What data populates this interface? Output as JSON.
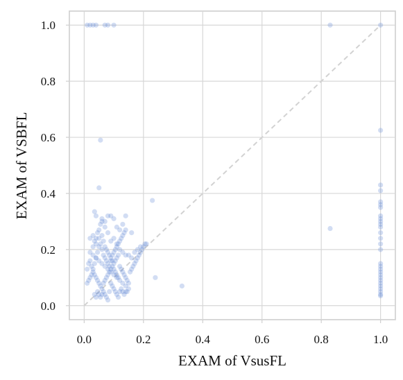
{
  "chart_data": {
    "type": "scatter",
    "title": "",
    "xlabel": "EXAM of VsusFL",
    "ylabel": "EXAM of VSBFL",
    "xlim": [
      -0.05,
      1.05
    ],
    "ylim": [
      -0.05,
      1.05
    ],
    "x_ticks": [
      0.0,
      0.2,
      0.4,
      0.6,
      0.8,
      1.0
    ],
    "y_ticks": [
      0.0,
      0.2,
      0.4,
      0.6,
      0.8,
      1.0
    ],
    "x_tick_labels": [
      "0.0",
      "0.2",
      "0.4",
      "0.6",
      "0.8",
      "1.0"
    ],
    "y_tick_labels": [
      "0.0",
      "0.2",
      "0.4",
      "0.6",
      "0.8",
      "1.0"
    ],
    "grid": true,
    "legend": "none",
    "reference_line": {
      "type": "identity",
      "from": [
        0,
        0
      ],
      "to": [
        1,
        1
      ],
      "style": "dashed"
    },
    "colors": {
      "point": "#6a8fd8",
      "grid": "#d7d7d7",
      "identity_line": "#d2d2d2",
      "axis_text": "#111111"
    },
    "series": [
      {
        "points": [
          [
            0.01,
            1.0
          ],
          [
            0.02,
            1.0
          ],
          [
            0.03,
            1.0
          ],
          [
            0.04,
            1.0
          ],
          [
            0.07,
            1.0
          ],
          [
            0.08,
            1.0
          ],
          [
            0.1,
            1.0
          ],
          [
            0.83,
            1.0
          ],
          [
            1.0,
            1.0
          ],
          [
            1.0,
            0.625
          ],
          [
            1.0,
            0.43
          ],
          [
            1.0,
            0.41
          ],
          [
            1.0,
            0.37
          ],
          [
            1.0,
            0.36
          ],
          [
            1.0,
            0.35
          ],
          [
            1.0,
            0.32
          ],
          [
            1.0,
            0.31
          ],
          [
            1.0,
            0.3
          ],
          [
            1.0,
            0.29
          ],
          [
            1.0,
            0.28
          ],
          [
            1.0,
            0.26
          ],
          [
            1.0,
            0.24
          ],
          [
            1.0,
            0.22
          ],
          [
            1.0,
            0.2
          ],
          [
            1.0,
            0.15
          ],
          [
            1.0,
            0.14
          ],
          [
            1.0,
            0.13
          ],
          [
            1.0,
            0.12
          ],
          [
            1.0,
            0.11
          ],
          [
            1.0,
            0.1
          ],
          [
            1.0,
            0.09
          ],
          [
            1.0,
            0.08
          ],
          [
            1.0,
            0.07
          ],
          [
            1.0,
            0.06
          ],
          [
            1.0,
            0.05
          ],
          [
            1.0,
            0.04
          ],
          [
            1.0,
            0.035
          ],
          [
            0.83,
            0.275
          ],
          [
            0.23,
            0.375
          ],
          [
            0.33,
            0.07
          ],
          [
            0.24,
            0.1
          ],
          [
            0.055,
            0.59
          ],
          [
            0.05,
            0.42
          ],
          [
            0.04,
            0.32
          ],
          [
            0.035,
            0.335
          ],
          [
            0.06,
            0.3
          ],
          [
            0.07,
            0.3
          ],
          [
            0.08,
            0.32
          ],
          [
            0.09,
            0.32
          ],
          [
            0.1,
            0.31
          ],
          [
            0.11,
            0.28
          ],
          [
            0.12,
            0.27
          ],
          [
            0.13,
            0.29
          ],
          [
            0.14,
            0.32
          ],
          [
            0.16,
            0.26
          ],
          [
            0.18,
            0.2
          ],
          [
            0.19,
            0.21
          ],
          [
            0.21,
            0.22
          ],
          [
            0.12,
            0.2
          ],
          [
            0.13,
            0.19
          ],
          [
            0.14,
            0.18
          ],
          [
            0.15,
            0.18
          ],
          [
            0.16,
            0.17
          ],
          [
            0.17,
            0.19
          ],
          [
            0.09,
            0.23
          ],
          [
            0.1,
            0.24
          ],
          [
            0.11,
            0.22
          ],
          [
            0.08,
            0.26
          ],
          [
            0.07,
            0.28
          ],
          [
            0.06,
            0.25
          ],
          [
            0.05,
            0.24
          ],
          [
            0.04,
            0.22
          ],
          [
            0.03,
            0.25
          ],
          [
            0.02,
            0.24
          ],
          [
            0.02,
            0.19
          ],
          [
            0.03,
            0.18
          ],
          [
            0.04,
            0.17
          ],
          [
            0.05,
            0.16
          ],
          [
            0.06,
            0.15
          ],
          [
            0.07,
            0.14
          ],
          [
            0.08,
            0.13
          ],
          [
            0.09,
            0.12
          ],
          [
            0.1,
            0.11
          ],
          [
            0.11,
            0.1
          ],
          [
            0.12,
            0.09
          ],
          [
            0.13,
            0.08
          ],
          [
            0.14,
            0.07
          ],
          [
            0.15,
            0.06
          ],
          [
            0.01,
            0.13
          ],
          [
            0.015,
            0.15
          ],
          [
            0.02,
            0.16
          ],
          [
            0.025,
            0.14
          ],
          [
            0.03,
            0.12
          ],
          [
            0.035,
            0.11
          ],
          [
            0.04,
            0.1
          ],
          [
            0.045,
            0.09
          ],
          [
            0.05,
            0.08
          ],
          [
            0.055,
            0.07
          ],
          [
            0.06,
            0.06
          ],
          [
            0.065,
            0.05
          ],
          [
            0.07,
            0.04
          ],
          [
            0.075,
            0.03
          ],
          [
            0.08,
            0.02
          ],
          [
            0.085,
            0.05
          ],
          [
            0.09,
            0.08
          ],
          [
            0.095,
            0.07
          ],
          [
            0.1,
            0.06
          ],
          [
            0.105,
            0.05
          ],
          [
            0.11,
            0.04
          ],
          [
            0.115,
            0.03
          ],
          [
            0.12,
            0.05
          ],
          [
            0.125,
            0.06
          ],
          [
            0.13,
            0.05
          ],
          [
            0.135,
            0.04
          ],
          [
            0.14,
            0.05
          ],
          [
            0.145,
            0.05
          ],
          [
            0.035,
            0.04
          ],
          [
            0.04,
            0.03
          ],
          [
            0.045,
            0.05
          ],
          [
            0.05,
            0.04
          ],
          [
            0.055,
            0.03
          ],
          [
            0.06,
            0.04
          ],
          [
            0.065,
            0.08
          ],
          [
            0.07,
            0.09
          ],
          [
            0.075,
            0.1
          ],
          [
            0.08,
            0.11
          ],
          [
            0.085,
            0.12
          ],
          [
            0.09,
            0.13
          ],
          [
            0.095,
            0.14
          ],
          [
            0.1,
            0.15
          ],
          [
            0.105,
            0.16
          ],
          [
            0.11,
            0.17
          ],
          [
            0.115,
            0.18
          ],
          [
            0.12,
            0.14
          ],
          [
            0.125,
            0.13
          ],
          [
            0.13,
            0.12
          ],
          [
            0.135,
            0.11
          ],
          [
            0.14,
            0.1
          ],
          [
            0.145,
            0.09
          ],
          [
            0.15,
            0.08
          ],
          [
            0.155,
            0.12
          ],
          [
            0.16,
            0.13
          ],
          [
            0.165,
            0.14
          ],
          [
            0.17,
            0.15
          ],
          [
            0.175,
            0.16
          ],
          [
            0.18,
            0.17
          ],
          [
            0.185,
            0.18
          ],
          [
            0.19,
            0.19
          ],
          [
            0.195,
            0.2
          ],
          [
            0.2,
            0.21
          ],
          [
            0.205,
            0.22
          ],
          [
            0.01,
            0.08
          ],
          [
            0.015,
            0.09
          ],
          [
            0.02,
            0.1
          ],
          [
            0.025,
            0.11
          ],
          [
            0.03,
            0.13
          ],
          [
            0.035,
            0.15
          ],
          [
            0.04,
            0.17
          ],
          [
            0.045,
            0.19
          ],
          [
            0.05,
            0.21
          ],
          [
            0.055,
            0.22
          ],
          [
            0.06,
            0.2
          ],
          [
            0.065,
            0.18
          ],
          [
            0.07,
            0.17
          ],
          [
            0.075,
            0.16
          ],
          [
            0.08,
            0.15
          ],
          [
            0.085,
            0.14
          ],
          [
            0.09,
            0.16
          ],
          [
            0.095,
            0.18
          ],
          [
            0.1,
            0.19
          ],
          [
            0.105,
            0.2
          ],
          [
            0.11,
            0.21
          ],
          [
            0.115,
            0.22
          ],
          [
            0.12,
            0.23
          ],
          [
            0.125,
            0.24
          ],
          [
            0.13,
            0.25
          ],
          [
            0.135,
            0.26
          ],
          [
            0.14,
            0.27
          ],
          [
            0.03,
            0.21
          ],
          [
            0.035,
            0.23
          ],
          [
            0.04,
            0.24
          ],
          [
            0.045,
            0.26
          ],
          [
            0.05,
            0.27
          ],
          [
            0.055,
            0.29
          ],
          [
            0.06,
            0.31
          ],
          [
            0.065,
            0.23
          ],
          [
            0.07,
            0.21
          ],
          [
            0.075,
            0.2
          ],
          [
            0.08,
            0.19
          ],
          [
            0.085,
            0.18
          ],
          [
            0.09,
            0.17
          ],
          [
            0.095,
            0.16
          ],
          [
            0.1,
            0.13
          ],
          [
            0.105,
            0.12
          ],
          [
            0.11,
            0.11
          ],
          [
            0.115,
            0.1
          ]
        ]
      }
    ]
  }
}
